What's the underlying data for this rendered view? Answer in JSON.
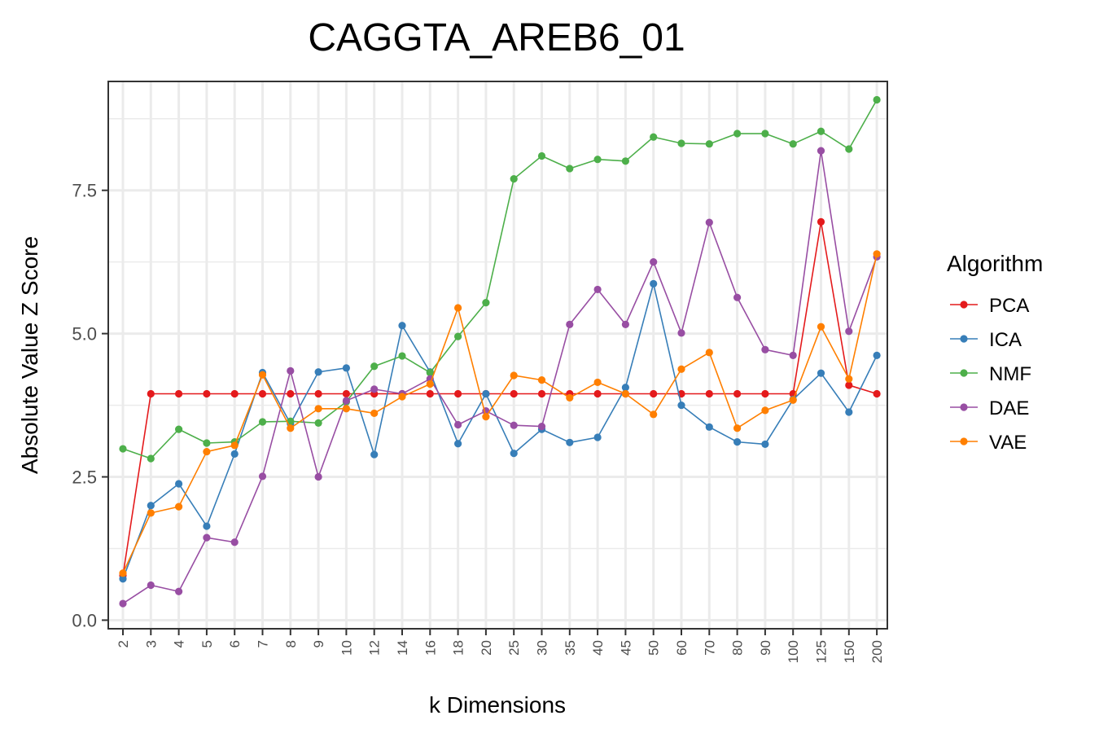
{
  "chart_data": {
    "type": "line",
    "title": "CAGGTA_AREB6_01",
    "xlabel": "k Dimensions",
    "ylabel": "Absolute Value Z Score",
    "categories": [
      "2",
      "3",
      "4",
      "5",
      "6",
      "7",
      "8",
      "9",
      "10",
      "12",
      "14",
      "16",
      "18",
      "20",
      "25",
      "30",
      "35",
      "40",
      "45",
      "50",
      "60",
      "70",
      "80",
      "90",
      "100",
      "125",
      "150",
      "200"
    ],
    "y_ticks": [
      "0.0",
      "2.5",
      "5.0",
      "7.5"
    ],
    "y_tick_values": [
      0,
      2.5,
      5.0,
      7.5
    ],
    "ylim": [
      -0.15,
      9.4
    ],
    "grid": true,
    "legend": {
      "title": "Algorithm",
      "placement": "right"
    },
    "series": [
      {
        "name": "PCA",
        "color": "#E41A1C",
        "values": [
          0.78,
          3.95,
          3.95,
          3.95,
          3.95,
          3.95,
          3.95,
          3.95,
          3.95,
          3.95,
          3.95,
          3.95,
          3.95,
          3.95,
          3.95,
          3.95,
          3.95,
          3.95,
          3.95,
          3.95,
          3.95,
          3.95,
          3.95,
          3.95,
          3.95,
          6.95,
          4.1,
          3.95
        ]
      },
      {
        "name": "ICA",
        "color": "#377EB8",
        "values": [
          0.72,
          2.0,
          2.38,
          1.64,
          2.9,
          4.32,
          3.43,
          4.33,
          4.4,
          2.89,
          5.14,
          4.33,
          3.08,
          3.95,
          2.91,
          3.33,
          3.1,
          3.19,
          4.06,
          5.87,
          3.75,
          3.37,
          3.11,
          3.07,
          3.85,
          4.31,
          3.63,
          4.62
        ]
      },
      {
        "name": "NMF",
        "color": "#4DAF4A",
        "values": [
          2.99,
          2.82,
          3.33,
          3.09,
          3.11,
          3.46,
          3.47,
          3.44,
          3.81,
          4.43,
          4.61,
          4.32,
          4.95,
          5.54,
          7.7,
          8.1,
          7.88,
          8.04,
          8.01,
          8.43,
          8.32,
          8.31,
          8.49,
          8.49,
          8.31,
          8.53,
          8.22,
          9.08
        ]
      },
      {
        "name": "DAE",
        "color": "#984EA3",
        "values": [
          0.29,
          0.61,
          0.5,
          1.44,
          1.36,
          2.51,
          4.35,
          2.5,
          3.83,
          4.03,
          3.95,
          4.21,
          3.41,
          3.65,
          3.4,
          3.38,
          5.16,
          5.77,
          5.16,
          6.25,
          5.01,
          6.94,
          5.63,
          4.72,
          4.62,
          8.19,
          5.04,
          6.34
        ]
      },
      {
        "name": "VAE",
        "color": "#FF7F00",
        "values": [
          0.82,
          1.87,
          1.98,
          2.94,
          3.05,
          4.28,
          3.35,
          3.69,
          3.69,
          3.61,
          3.9,
          4.12,
          5.45,
          3.55,
          4.27,
          4.19,
          3.88,
          4.15,
          3.95,
          3.59,
          4.38,
          4.67,
          3.35,
          3.66,
          3.84,
          5.12,
          4.21,
          6.39
        ]
      }
    ]
  }
}
